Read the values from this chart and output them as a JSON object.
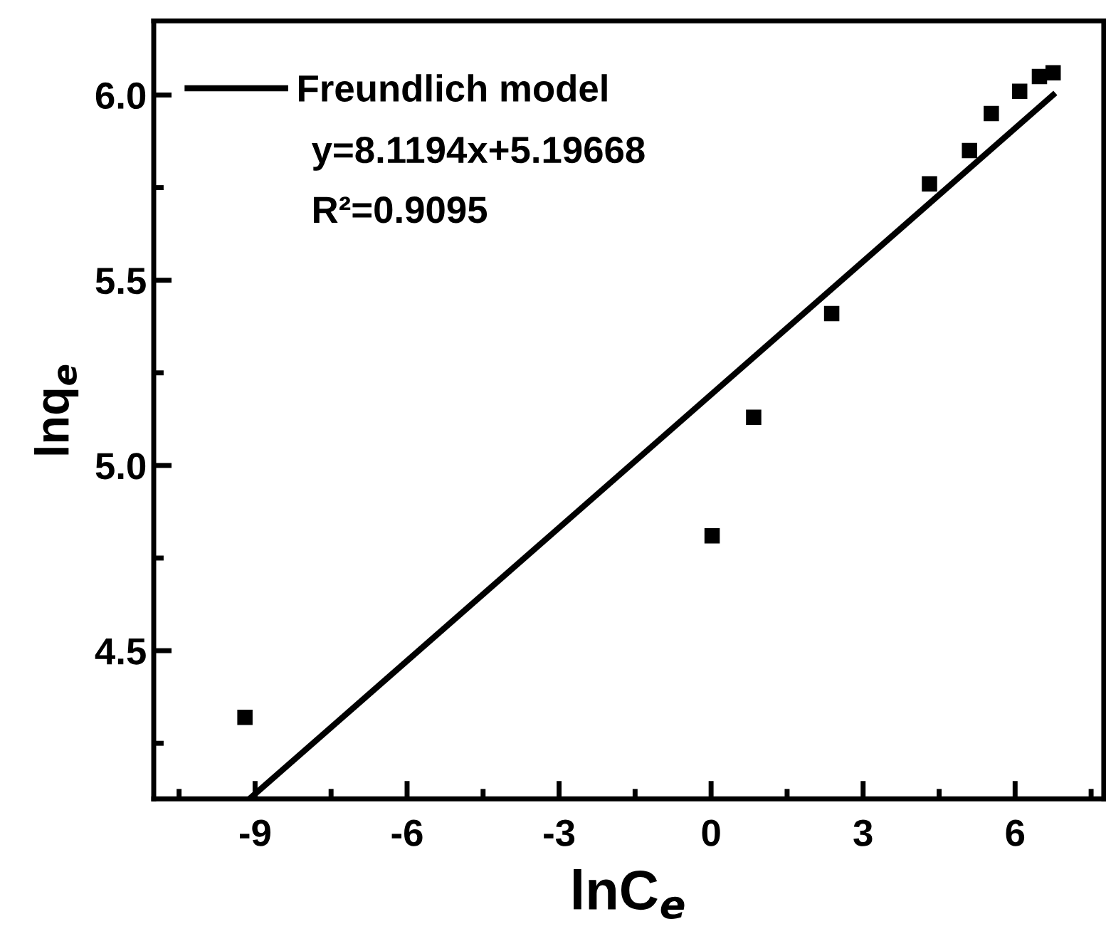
{
  "chart_data": {
    "type": "scatter",
    "xlabel": "lnC$_{e}$",
    "ylabel": "lnq$_{e}$",
    "series": [
      {
        "color": "#000000",
        "marker": "square",
        "x": [
          -9.2,
          0.02,
          0.84,
          2.38,
          4.31,
          5.1,
          5.53,
          6.09,
          6.48,
          6.75
        ],
        "values": [
          4.32,
          4.81,
          5.13,
          5.41,
          5.76,
          5.85,
          5.95,
          6.01,
          6.05,
          6.06
        ]
      },
      {
        "type": "line",
        "name": "Freundlich model",
        "color": "#000000",
        "marker": "none",
        "line_style": "solid",
        "x": [
          -9.11,
          6.75
        ],
        "values": [
          4.1,
          6.0
        ]
      }
    ],
    "annotations": [
      "y=8.1194x+5.19668",
      "R²=0.9095"
    ],
    "xlim": [
      -11,
      7.75
    ],
    "xticks": [
      -9,
      -6,
      -3,
      0,
      3,
      6
    ],
    "ylim": [
      4.1,
      6.2
    ],
    "yticks": [
      {
        "value": 4.5,
        "label": "4.5"
      },
      {
        "value": 5.0,
        "label": "5.0"
      },
      {
        "value": 5.5,
        "label": "5.5"
      },
      {
        "value": 6.0,
        "label": "6.0"
      }
    ],
    "grid": false,
    "legend": "top left"
  }
}
